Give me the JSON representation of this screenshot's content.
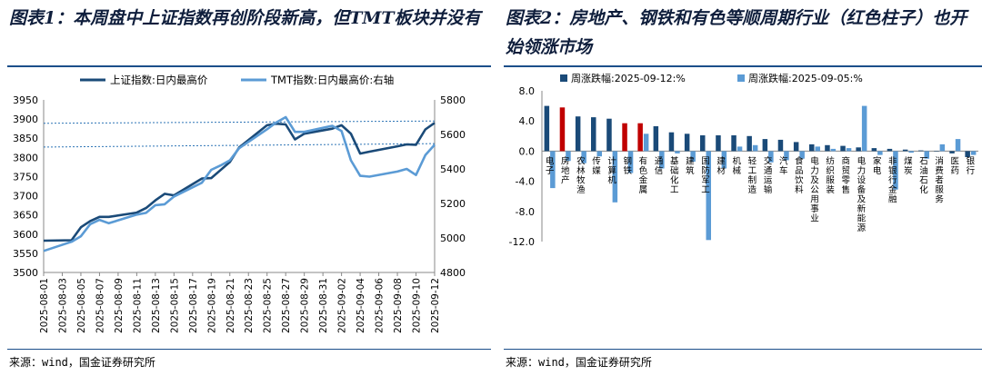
{
  "left": {
    "title": "图表1：本周盘中上证指数再创阶段新高，但TMT板块并没有",
    "source": "来源：wind，国金证券研究所"
  },
  "right": {
    "title": "图表2：房地产、钢铁和有色等顺周期行业（红色柱子）也开始领涨市场",
    "source": "来源：wind，国金证券研究所"
  },
  "colors": {
    "dark_blue": "#1a4a78",
    "light_blue": "#5b9bd5",
    "red": "#c00000",
    "rule": "#1b4f8a"
  },
  "chart_data": [
    {
      "type": "line",
      "legend_position": "top",
      "grid": false,
      "x": [
        "2025-08-01",
        "2025-08-03",
        "2025-08-05",
        "2025-08-07",
        "2025-08-09",
        "2025-08-11",
        "2025-08-13",
        "2025-08-15",
        "2025-08-17",
        "2025-08-19",
        "2025-08-21",
        "2025-08-23",
        "2025-08-25",
        "2025-08-27",
        "2025-08-29",
        "2025-08-31",
        "2025-09-02",
        "2025-09-04",
        "2025-09-06",
        "2025-09-08",
        "2025-09-10",
        "2025-09-12"
      ],
      "ylim_left": [
        3500,
        3950
      ],
      "yticks_left": [
        3500,
        3550,
        3600,
        3650,
        3700,
        3750,
        3800,
        3850,
        3900,
        3950
      ],
      "ylim_right": [
        4800,
        5800
      ],
      "yticks_right": [
        4800,
        5000,
        5200,
        5400,
        5600,
        5800
      ],
      "series": [
        {
          "name": "上证指数:日内最高价",
          "axis": "left",
          "color": "#1a4a78",
          "points": [
            [
              "2025-08-01",
              3583
            ],
            [
              "2025-08-04",
              3584
            ],
            [
              "2025-08-05",
              3618
            ],
            [
              "2025-08-06",
              3634
            ],
            [
              "2025-08-07",
              3645
            ],
            [
              "2025-08-08",
              3645
            ],
            [
              "2025-08-11",
              3656
            ],
            [
              "2025-08-12",
              3668
            ],
            [
              "2025-08-13",
              3688
            ],
            [
              "2025-08-14",
              3705
            ],
            [
              "2025-08-15",
              3701
            ],
            [
              "2025-08-18",
              3745
            ],
            [
              "2025-08-19",
              3746
            ],
            [
              "2025-08-20",
              3767
            ],
            [
              "2025-08-21",
              3788
            ],
            [
              "2025-08-22",
              3826
            ],
            [
              "2025-08-25",
              3884
            ],
            [
              "2025-08-26",
              3888
            ],
            [
              "2025-08-27",
              3886
            ],
            [
              "2025-08-28",
              3847
            ],
            [
              "2025-08-29",
              3862
            ],
            [
              "2025-09-01",
              3875
            ],
            [
              "2025-09-02",
              3884
            ],
            [
              "2025-09-03",
              3862
            ],
            [
              "2025-09-04",
              3810
            ],
            [
              "2025-09-05",
              3815
            ],
            [
              "2025-09-08",
              3829
            ],
            [
              "2025-09-09",
              3834
            ],
            [
              "2025-09-10",
              3833
            ],
            [
              "2025-09-11",
              3873
            ],
            [
              "2025-09-12",
              3890
            ]
          ]
        },
        {
          "name": "TMT指数:日内最高价:右轴",
          "axis": "right",
          "color": "#5b9bd5",
          "points": [
            [
              "2025-08-01",
              4925
            ],
            [
              "2025-08-04",
              4978
            ],
            [
              "2025-08-05",
              5010
            ],
            [
              "2025-08-06",
              5080
            ],
            [
              "2025-08-07",
              5105
            ],
            [
              "2025-08-08",
              5085
            ],
            [
              "2025-08-11",
              5135
            ],
            [
              "2025-08-12",
              5145
            ],
            [
              "2025-08-13",
              5190
            ],
            [
              "2025-08-14",
              5195
            ],
            [
              "2025-08-15",
              5240
            ],
            [
              "2025-08-18",
              5320
            ],
            [
              "2025-08-19",
              5395
            ],
            [
              "2025-08-20",
              5420
            ],
            [
              "2025-08-21",
              5450
            ],
            [
              "2025-08-22",
              5520
            ],
            [
              "2025-08-25",
              5630
            ],
            [
              "2025-08-26",
              5670
            ],
            [
              "2025-08-27",
              5700
            ],
            [
              "2025-08-28",
              5615
            ],
            [
              "2025-08-29",
              5615
            ],
            [
              "2025-09-01",
              5650
            ],
            [
              "2025-09-02",
              5620
            ],
            [
              "2025-09-03",
              5450
            ],
            [
              "2025-09-04",
              5360
            ],
            [
              "2025-09-05",
              5355
            ],
            [
              "2025-09-08",
              5385
            ],
            [
              "2025-09-09",
              5400
            ],
            [
              "2025-09-10",
              5365
            ],
            [
              "2025-09-11",
              5480
            ],
            [
              "2025-09-12",
              5540
            ]
          ]
        }
      ],
      "reference_lines": [
        {
          "axis": "left",
          "from": [
            "2025-08-01",
            3827
          ],
          "to": [
            "2025-09-12",
            3836
          ]
        },
        {
          "axis": "left",
          "from": [
            "2025-08-01",
            3889
          ],
          "to": [
            "2025-09-12",
            3895
          ]
        }
      ]
    },
    {
      "type": "bar",
      "legend_position": "top",
      "grid": false,
      "ylim": [
        -12,
        8
      ],
      "yticks": [
        -12.0,
        -8.0,
        -4.0,
        0.0,
        4.0,
        8.0
      ],
      "categories": [
        "电子",
        "房地产",
        "农林牧渔",
        "传媒",
        "计算机",
        "钢铁",
        "有色金属",
        "通信",
        "基础化工",
        "建筑",
        "国防军工",
        "建材",
        "机械",
        "轻工制造",
        "交通运输",
        "汽车",
        "食品饮料",
        "电力及公用事业",
        "纺织服装",
        "商贸零售",
        "电力设备及新能源",
        "家电",
        "非银行金融",
        "煤炭",
        "石油石化",
        "消费者服务",
        "医药",
        "银行"
      ],
      "highlighted": [
        "房地产",
        "钢铁",
        "有色金属"
      ],
      "highlight_color": "#c00000",
      "series": [
        {
          "name": "周涨跌幅:2025-09-12:%",
          "color": "#1a4a78",
          "values": [
            6.0,
            5.8,
            4.6,
            4.5,
            4.3,
            3.7,
            3.7,
            3.3,
            2.5,
            2.3,
            2.1,
            2.1,
            2.1,
            2.0,
            1.6,
            1.5,
            1.2,
            0.9,
            0.8,
            0.7,
            0.5,
            0.4,
            0.3,
            0.2,
            0.1,
            0.0,
            -0.3,
            -0.8
          ]
        },
        {
          "name": "周涨跌幅:2025-09-05:%",
          "color": "#5b9bd5",
          "values": [
            -4.9,
            -1.3,
            -1.6,
            -0.7,
            -6.8,
            -2.9,
            2.3,
            -2.3,
            -0.3,
            -1.4,
            -11.8,
            -2.3,
            0.6,
            0.8,
            -1.5,
            -1.2,
            -1.0,
            0.6,
            0.3,
            0.4,
            6.0,
            -0.5,
            -5.1,
            -0.2,
            -1.0,
            0.9,
            1.6,
            -0.5
          ]
        }
      ]
    }
  ]
}
